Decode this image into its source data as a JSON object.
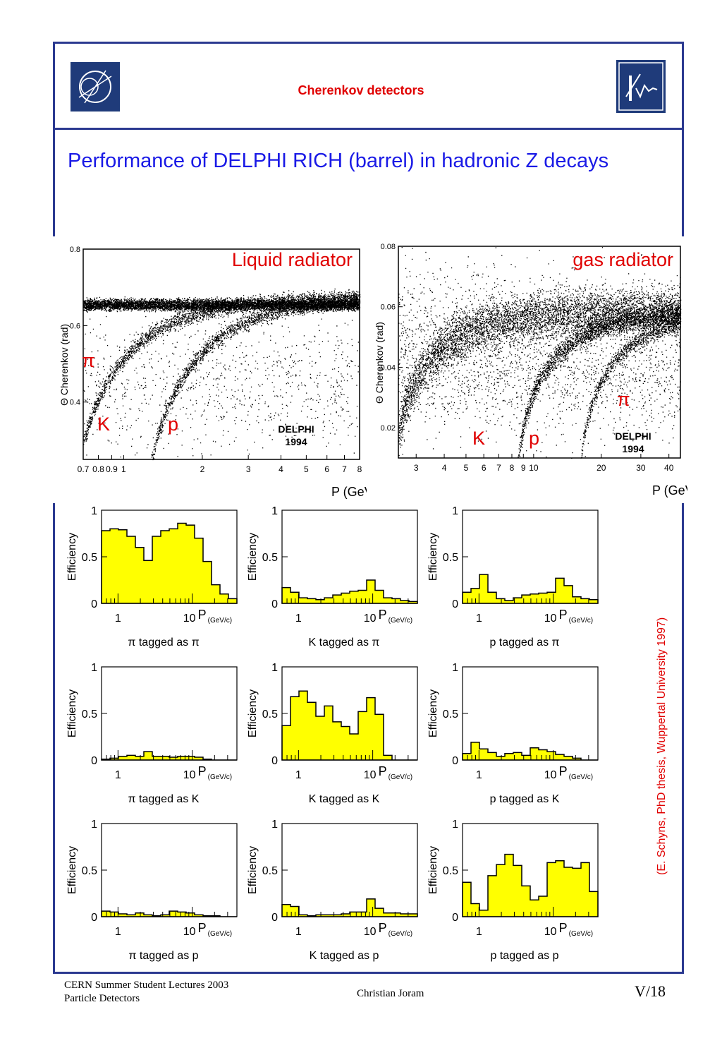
{
  "header": {
    "title": "Cherenkov detectors",
    "logos": [
      "cern-logo",
      "eth-logo"
    ]
  },
  "slide": {
    "title": "Performance of DELPHI RICH (barrel) in hadronic Z decays"
  },
  "chart_data": [
    {
      "type": "scatter",
      "title": "Liquid radiator",
      "ylabel": "Θ Cherenkov (rad)",
      "xlabel": "P (GeV/c)",
      "ylim": [
        0.25,
        0.8
      ],
      "yticks": [
        "0.4",
        "0.6",
        "0.8"
      ],
      "xticks": [
        "0.7",
        "0.8",
        "0.9",
        "1",
        "2",
        "3",
        "4",
        "5",
        "6",
        "7",
        "8"
      ],
      "xscale": "log",
      "xlim": [
        0.7,
        8
      ],
      "bands": [
        {
          "name": "π",
          "label_side": "left"
        },
        {
          "name": "K"
        },
        {
          "name": "p"
        }
      ],
      "annotation": [
        "DELPHI",
        "1994"
      ]
    },
    {
      "type": "scatter",
      "title": "gas radiator",
      "ylabel": "Θ Cherenkov (rad)",
      "xlabel": "P (GeV/c)",
      "ylim": [
        0.01,
        0.08
      ],
      "yticks": [
        "0.02",
        "0.04",
        "0.06",
        "0.08"
      ],
      "xticks": [
        "3",
        "4",
        "5",
        "6",
        "7",
        "8",
        "9",
        "10",
        "20",
        "30",
        "40"
      ],
      "xscale": "log",
      "xlim": [
        2.5,
        45
      ],
      "bands": [
        {
          "name": "π"
        },
        {
          "name": "K"
        },
        {
          "name": "p"
        }
      ],
      "annotation": [
        "DELPHI",
        "1994"
      ]
    },
    {
      "type": "bar",
      "panels": [
        {
          "title": "π tagged as π",
          "values": [
            0.78,
            0.8,
            0.79,
            0.72,
            0.6,
            0.46,
            0.72,
            0.78,
            0.8,
            0.86,
            0.84,
            0.7,
            0.45,
            0.2,
            0.1,
            0.05
          ]
        },
        {
          "title": "K tagged as π",
          "values": [
            0.17,
            0.12,
            0.06,
            0.05,
            0.04,
            0.06,
            0.09,
            0.11,
            0.13,
            0.14,
            0.25,
            0.14,
            0.06,
            0.05,
            0.03,
            0.02
          ]
        },
        {
          "title": "p tagged as π",
          "values": [
            0.12,
            0.16,
            0.31,
            0.12,
            0.05,
            0.03,
            0.06,
            0.09,
            0.1,
            0.11,
            0.12,
            0.27,
            0.19,
            0.07,
            0.05,
            0.04
          ]
        },
        {
          "title": "π tagged as K",
          "values": [
            0.01,
            0.02,
            0.04,
            0.05,
            0.04,
            0.09,
            0.04,
            0.04,
            0.03,
            0.04,
            0.04,
            0.03,
            0.01,
            0,
            0,
            0
          ]
        },
        {
          "title": "K tagged as K",
          "values": [
            0.37,
            0.68,
            0.74,
            0.62,
            0.47,
            0.58,
            0.41,
            0.36,
            0.28,
            0.52,
            0.67,
            0.49,
            0.05,
            0,
            0,
            0
          ]
        },
        {
          "title": "p tagged as K",
          "values": [
            0.07,
            0.19,
            0.12,
            0.08,
            0.04,
            0.07,
            0.08,
            0.05,
            0.13,
            0.11,
            0.09,
            0.06,
            0.04,
            0.02,
            0,
            0
          ]
        },
        {
          "title": "π tagged as p",
          "values": [
            0.06,
            0.05,
            0.03,
            0.02,
            0.04,
            0.02,
            0.01,
            0.02,
            0.06,
            0.05,
            0.04,
            0.02,
            0.01,
            0.01,
            0,
            0
          ]
        },
        {
          "title": "K tagged as p",
          "values": [
            0.13,
            0.11,
            0.02,
            0.01,
            0.02,
            0.02,
            0.02,
            0.03,
            0.05,
            0.05,
            0.19,
            0.09,
            0.04,
            0.04,
            0.03,
            0.03
          ]
        },
        {
          "title": "p tagged as p",
          "values": [
            0.37,
            0.14,
            0.07,
            0.44,
            0.56,
            0.67,
            0.55,
            0.33,
            0.18,
            0.22,
            0.58,
            0.6,
            0.53,
            0.52,
            0.58,
            0.27
          ]
        }
      ],
      "ylabel": "Efficiency",
      "ylim": [
        0,
        1
      ],
      "yticks": [
        "0",
        "0.5",
        "1"
      ],
      "xscale": "log",
      "xticks": [
        "1",
        "10"
      ],
      "xunit_label": "P",
      "xunit_sub": "(GeV/c)",
      "fill_color": "#ffff00"
    }
  ],
  "credit": "(E. Schyns, PhD thesis, Wuppertal University 1997)",
  "footer": {
    "left_line1": "CERN Summer Student Lectures 2003",
    "left_line2": "Particle Detectors",
    "center": "Christian Joram",
    "right": "V/18"
  },
  "colors": {
    "frame": "#2b3990",
    "title": "#1a1ae6",
    "accent": "#e00000",
    "fill": "#ffff00"
  }
}
